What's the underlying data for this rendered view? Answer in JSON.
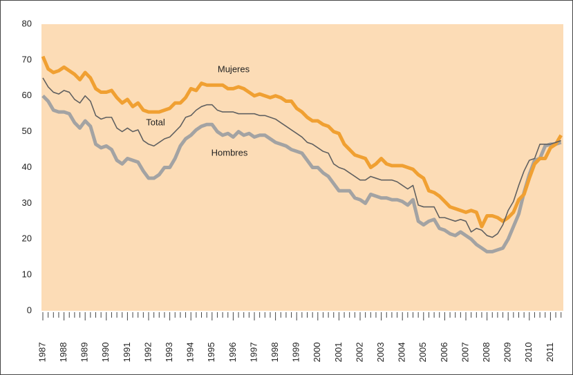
{
  "chart_data": {
    "type": "line",
    "categories": [
      "1987",
      null,
      null,
      null,
      "1988",
      null,
      null,
      null,
      "1989",
      null,
      null,
      null,
      "1990",
      null,
      null,
      null,
      "1991",
      null,
      null,
      null,
      "1992",
      null,
      null,
      null,
      "1993",
      null,
      null,
      null,
      "1994",
      null,
      null,
      null,
      "1995",
      null,
      null,
      null,
      "1996",
      null,
      null,
      null,
      "1997",
      null,
      null,
      null,
      "1998",
      null,
      null,
      null,
      "1999",
      null,
      null,
      null,
      "2000",
      null,
      null,
      null,
      "2001",
      null,
      null,
      null,
      "2002",
      null,
      null,
      null,
      "2003",
      null,
      null,
      null,
      "2004",
      null,
      null,
      null,
      "2005",
      null,
      null,
      null,
      "2006",
      null,
      null,
      null,
      "2007",
      null,
      null,
      null,
      "2008",
      null,
      null,
      null,
      "2009",
      null,
      null,
      null,
      "2010",
      null,
      null,
      null,
      "2011",
      null,
      null
    ],
    "series": [
      {
        "name": "Hombres",
        "color": "#a3a3a3",
        "width": 5,
        "label_at": [
          332,
          222
        ],
        "values": [
          60,
          58.5,
          56,
          55.5,
          55.5,
          55,
          52.5,
          51,
          53,
          51.5,
          46.5,
          45.5,
          46,
          45,
          42,
          41,
          42.5,
          42,
          41.5,
          39,
          37,
          37,
          38,
          40,
          40,
          42.5,
          46,
          48,
          49,
          50.5,
          51.5,
          52,
          52,
          50,
          49,
          49.5,
          48.5,
          50,
          49,
          49.5,
          48.5,
          49,
          49,
          48,
          47,
          46.5,
          46,
          45,
          44.5,
          44,
          42,
          40,
          40,
          38.5,
          37.5,
          35.5,
          33.5,
          33.5,
          33.5,
          31.5,
          31,
          30,
          32.5,
          32,
          31.5,
          31.5,
          31,
          31,
          30.5,
          29.5,
          31,
          25,
          24,
          25,
          25.5,
          23,
          22.5,
          21.5,
          21,
          22,
          21,
          20,
          18.5,
          17.5,
          16.5,
          16.5,
          17,
          17.5,
          20,
          23.5,
          27,
          33,
          38,
          42,
          42.5,
          46,
          46.5,
          46.5,
          47
        ]
      },
      {
        "name": "Mujeres",
        "color": "#f0a032",
        "width": 5,
        "label_at": [
          338,
          101
        ],
        "values": [
          71,
          67.5,
          66.5,
          67,
          68,
          67,
          66,
          64.5,
          66.5,
          65,
          62,
          61,
          61,
          61.5,
          59.5,
          58,
          59,
          57,
          58,
          56,
          55.5,
          55.5,
          55.5,
          56,
          56.5,
          58,
          58,
          59.5,
          62,
          61.5,
          63.5,
          63,
          63,
          63,
          63,
          62,
          62,
          62.5,
          62,
          61,
          60,
          60.5,
          60,
          59.5,
          60,
          59.5,
          58.5,
          58.5,
          56.5,
          55.5,
          54,
          53,
          53,
          52,
          51.5,
          50,
          49.5,
          46.5,
          45,
          43.5,
          43,
          42.5,
          40,
          41,
          42.5,
          41,
          40.5,
          40.5,
          40.5,
          40,
          39.5,
          38,
          37,
          33.5,
          33,
          32,
          30.5,
          29,
          28.5,
          28,
          27.5,
          28,
          27.5,
          23.5,
          26.5,
          26.5,
          26,
          25,
          26,
          27.5,
          31,
          32.5,
          37,
          41,
          42.5,
          42.5,
          45.5,
          46.5,
          49
        ]
      },
      {
        "name": "Total",
        "color": "#606060",
        "width": 1.6,
        "label_at": [
          225,
          178
        ],
        "values": [
          65,
          62.5,
          61,
          60.5,
          61.5,
          61,
          59,
          58,
          60,
          58.5,
          54.5,
          53.5,
          54,
          54,
          51,
          50,
          51,
          50,
          50.5,
          47.5,
          46.5,
          46,
          47,
          48,
          48.5,
          50,
          51.5,
          54,
          54.5,
          56,
          57,
          57.5,
          57.5,
          56,
          55.5,
          55.5,
          55.5,
          55,
          55,
          55,
          55,
          54.5,
          54.5,
          54,
          53.5,
          52.5,
          51.5,
          50.5,
          49.5,
          48.5,
          47,
          46.5,
          45.5,
          44.5,
          44,
          41,
          40,
          39.5,
          38.5,
          37.5,
          36.5,
          36.5,
          37.5,
          37,
          36.5,
          36.5,
          36.5,
          36,
          35,
          34,
          35,
          29.5,
          29,
          29,
          29,
          26,
          26,
          25.5,
          25,
          25.5,
          25,
          22,
          23,
          22.5,
          21,
          20.5,
          21.5,
          24,
          28,
          30.5,
          35,
          39,
          42,
          42.5,
          46.5,
          46.5,
          46.5,
          47,
          47.5
        ]
      }
    ],
    "ylim": [
      0,
      80
    ],
    "yticks": [
      0,
      10,
      20,
      30,
      40,
      50,
      60,
      70,
      80
    ],
    "plot_background": "#fcdcb6"
  }
}
